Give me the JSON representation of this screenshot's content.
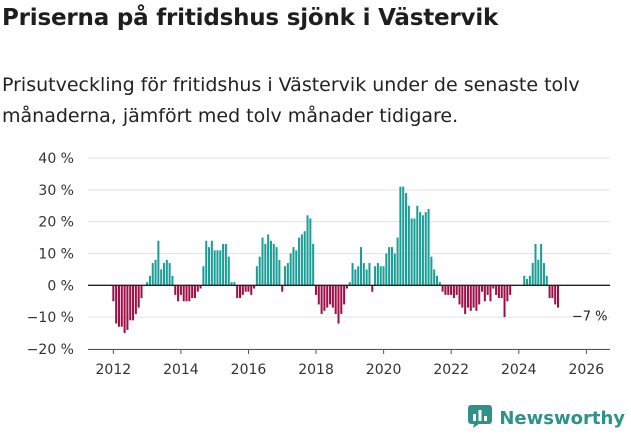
{
  "header": {
    "title": "Priserna på fritidshus sjönk i Västervik",
    "subtitle": "Prisutveckling för fritidshus i Västervik under de senaste tolv månaderna, jämfört med tolv månader tidigare."
  },
  "branding": {
    "name": "Newsworthy",
    "icon": "bar-chart-logo-icon"
  },
  "colors": {
    "positive": "#1a9e96",
    "negative": "#9e0f47",
    "grid": "#e3e3e3",
    "zero_line": "#222222",
    "brand": "#2f9189"
  },
  "chart_data": {
    "type": "bar",
    "title": "Prisutveckling för fritidshus i Västervik",
    "xlabel": "",
    "ylabel": "",
    "x_start": 2012.0,
    "x_step": 0.0833,
    "xlim": [
      2011.25,
      2026.7
    ],
    "ylim": [
      -20,
      40
    ],
    "y_ticks": [
      -20,
      -10,
      0,
      10,
      20,
      30,
      40
    ],
    "y_tick_labels": [
      "−20 %",
      "−10 %",
      "0 %",
      "10 %",
      "20 %",
      "30 %",
      "40 %"
    ],
    "x_ticks": [
      2012,
      2014,
      2016,
      2018,
      2020,
      2022,
      2024,
      2026
    ],
    "x_tick_labels": [
      "2012",
      "2014",
      "2016",
      "2018",
      "2020",
      "2022",
      "2024",
      "2026"
    ],
    "values": [
      -5,
      -12,
      -13,
      -13,
      -15,
      -14,
      -11,
      -11,
      -9,
      -7,
      -4,
      0,
      1,
      3,
      7,
      8,
      14,
      5,
      7,
      8,
      7,
      3,
      -3,
      -5,
      -3,
      -5,
      -5,
      -5,
      -4,
      -4,
      -2,
      -1,
      6,
      14,
      12,
      14,
      11,
      11,
      11,
      13,
      13,
      9,
      1,
      1,
      -4,
      -4,
      -3,
      -2,
      -2,
      -3,
      -1,
      6,
      9,
      15,
      13,
      16,
      14,
      13,
      12,
      8,
      -2,
      6,
      7,
      10,
      12,
      11,
      15,
      16,
      17,
      22,
      21,
      13,
      -3,
      -6,
      -9,
      -8,
      -7,
      -6,
      -7,
      -9,
      -12,
      -9,
      -6,
      -1,
      1,
      7,
      5,
      6,
      12,
      7,
      5,
      7,
      -2,
      6,
      7,
      6,
      6,
      10,
      12,
      12,
      10,
      15,
      31,
      31,
      29,
      25,
      21,
      21,
      25,
      23,
      22,
      23,
      24,
      9,
      5,
      3,
      1,
      -2,
      -3,
      -3,
      -3,
      -4,
      -3,
      -6,
      -7,
      -9,
      -7,
      -8,
      -7,
      -8,
      -6,
      -2,
      -5,
      -3,
      -5,
      -1,
      -3,
      -4,
      -4,
      -10,
      -5,
      -3,
      0,
      0,
      0,
      0,
      3,
      2,
      3,
      7,
      13,
      8,
      13,
      7,
      3,
      -4,
      -4,
      -6,
      -7
    ],
    "annotations": [
      {
        "text": "−7 %",
        "x": 2026.1,
        "y": -7
      }
    ]
  }
}
